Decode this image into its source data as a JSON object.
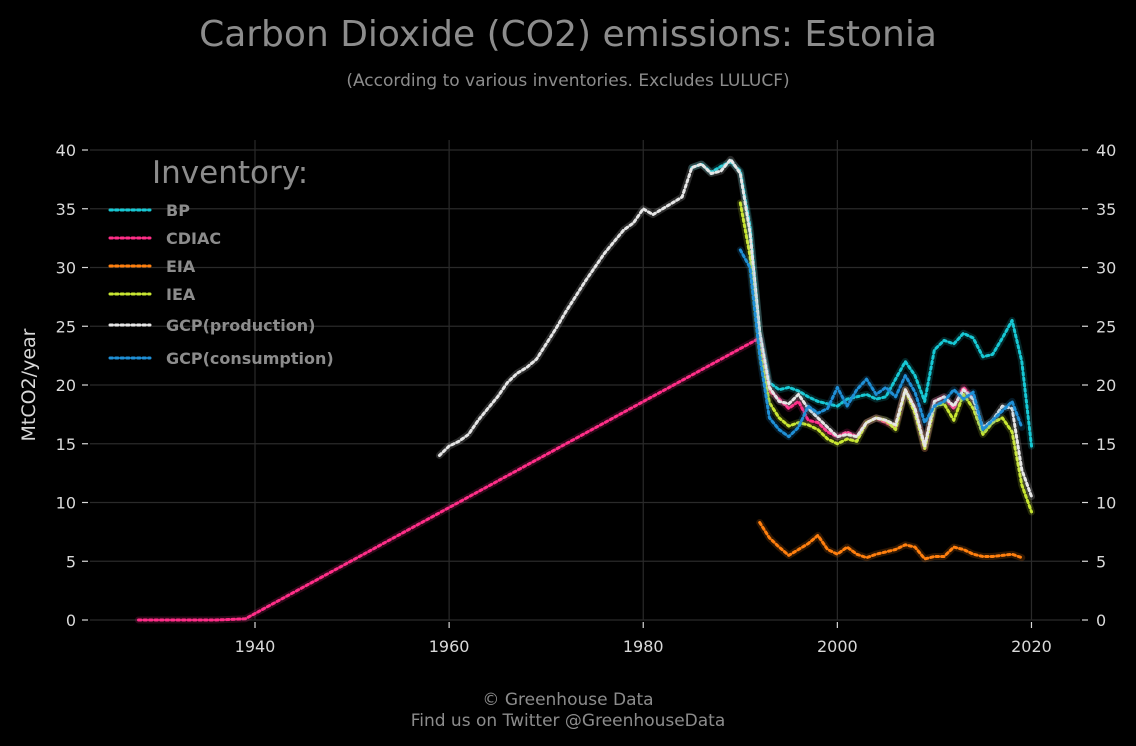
{
  "chart_data": {
    "type": "line",
    "title": "Carbon Dioxide (CO2) emissions: Estonia",
    "subtitle": "(According to various inventories. Excludes LULUCF)",
    "xlabel": "",
    "ylabel": "MtCO2/year",
    "xlim": [
      1923,
      2025
    ],
    "ylim": [
      0,
      40
    ],
    "xticks": [
      1940,
      1960,
      1980,
      2000,
      2020
    ],
    "yticks": [
      0,
      5,
      10,
      15,
      20,
      25,
      30,
      35,
      40
    ],
    "grid": true,
    "legend_title": "Inventory:",
    "legend_position": "top-left",
    "series": [
      {
        "name": "BP",
        "color": "#17c8d4",
        "x": [
          1985,
          1986,
          1987,
          1988,
          1989,
          1990,
          1991,
          1992,
          1993,
          1994,
          1995,
          1996,
          1997,
          1998,
          1999,
          2000,
          2001,
          2002,
          2003,
          2004,
          2005,
          2006,
          2007,
          2008,
          2009,
          2010,
          2011,
          2012,
          2013,
          2014,
          2015,
          2016,
          2017,
          2018,
          2019,
          2020
        ],
        "y": [
          38.5,
          38.8,
          38.1,
          38.6,
          39.0,
          38.2,
          33.5,
          24.5,
          20.2,
          19.6,
          19.8,
          19.5,
          19.0,
          18.6,
          18.4,
          18.2,
          18.8,
          19.0,
          19.2,
          18.8,
          19.0,
          20.5,
          22.0,
          20.8,
          18.6,
          23.0,
          23.8,
          23.5,
          24.4,
          24.0,
          22.4,
          22.6,
          24.0,
          25.5,
          22.0,
          14.8
        ]
      },
      {
        "name": "CDIAC",
        "color": "#ff2e88",
        "x": [
          1928,
          1932,
          1936,
          1939,
          1992,
          1993,
          1994,
          1995,
          1996,
          1997,
          1998,
          1999,
          2000,
          2001,
          2002,
          2003,
          2004,
          2005,
          2006,
          2007,
          2008,
          2009,
          2010,
          2011,
          2012,
          2013,
          2014
        ],
        "y": [
          0,
          0,
          0,
          0.1,
          24.0,
          19.5,
          18.8,
          18.0,
          18.6,
          17.0,
          16.8,
          16.0,
          15.6,
          16.0,
          15.6,
          16.8,
          17.2,
          16.8,
          16.4,
          19.6,
          18.0,
          14.6,
          18.6,
          19.0,
          18.0,
          19.8,
          18.8
        ]
      },
      {
        "name": "EIA",
        "color": "#ff7f0e",
        "x": [
          1992,
          1993,
          1994,
          1995,
          1996,
          1997,
          1998,
          1999,
          2000,
          2001,
          2002,
          2003,
          2004,
          2005,
          2006,
          2007,
          2008,
          2009,
          2010,
          2011,
          2012,
          2013,
          2014,
          2015,
          2016,
          2017,
          2018,
          2019
        ],
        "y": [
          8.3,
          7.0,
          6.2,
          5.5,
          6.0,
          6.5,
          7.2,
          6.0,
          5.6,
          6.2,
          5.6,
          5.3,
          5.6,
          5.8,
          6.0,
          6.4,
          6.2,
          5.2,
          5.4,
          5.4,
          6.2,
          6.0,
          5.6,
          5.4,
          5.4,
          5.5,
          5.6,
          5.3
        ]
      },
      {
        "name": "IEA",
        "color": "#c8e632",
        "x": [
          1990,
          1991,
          1992,
          1993,
          1994,
          1995,
          1996,
          1997,
          1998,
          1999,
          2000,
          2001,
          2002,
          2003,
          2004,
          2005,
          2006,
          2007,
          2008,
          2009,
          2010,
          2011,
          2012,
          2013,
          2014,
          2015,
          2016,
          2017,
          2018,
          2019,
          2020
        ],
        "y": [
          35.5,
          31.0,
          23.0,
          18.5,
          17.2,
          16.5,
          16.8,
          16.6,
          16.2,
          15.4,
          15.0,
          15.4,
          15.2,
          16.8,
          17.2,
          17.0,
          16.2,
          19.6,
          17.6,
          14.6,
          18.2,
          18.4,
          17.0,
          19.2,
          18.0,
          15.8,
          16.8,
          17.2,
          16.0,
          11.5,
          9.2
        ]
      },
      {
        "name": "GCP(production)",
        "color": "#e6e6e6",
        "x": [
          1959,
          1960,
          1961,
          1962,
          1963,
          1964,
          1965,
          1966,
          1967,
          1968,
          1969,
          1970,
          1971,
          1972,
          1973,
          1974,
          1975,
          1976,
          1977,
          1978,
          1979,
          1980,
          1981,
          1982,
          1983,
          1984,
          1985,
          1986,
          1987,
          1988,
          1989,
          1990,
          1991,
          1992,
          1993,
          1994,
          1995,
          1996,
          1997,
          1998,
          1999,
          2000,
          2001,
          2002,
          2003,
          2004,
          2005,
          2006,
          2007,
          2008,
          2009,
          2010,
          2011,
          2012,
          2013,
          2014,
          2015,
          2016,
          2017,
          2018,
          2019,
          2020
        ],
        "y": [
          14.0,
          14.8,
          15.2,
          15.8,
          17.0,
          18.0,
          19.0,
          20.2,
          21.0,
          21.5,
          22.2,
          23.5,
          24.8,
          26.2,
          27.5,
          28.8,
          30.0,
          31.2,
          32.2,
          33.2,
          33.8,
          35.0,
          34.5,
          35.0,
          35.5,
          36.0,
          38.5,
          38.8,
          38.0,
          38.2,
          39.2,
          38.0,
          33.0,
          24.5,
          19.8,
          18.6,
          18.4,
          19.2,
          18.0,
          17.2,
          16.4,
          15.6,
          15.8,
          15.6,
          16.8,
          17.2,
          17.0,
          16.6,
          19.6,
          18.0,
          14.8,
          18.6,
          19.0,
          18.2,
          19.6,
          18.8,
          16.4,
          17.0,
          18.2,
          18.0,
          12.8,
          10.5
        ]
      },
      {
        "name": "GCP(consumption)",
        "color": "#1f8fd6",
        "x": [
          1990,
          1991,
          1992,
          1993,
          1994,
          1995,
          1996,
          1997,
          1998,
          1999,
          2000,
          2001,
          2002,
          2003,
          2004,
          2005,
          2006,
          2007,
          2008,
          2009,
          2010,
          2011,
          2012,
          2013,
          2014,
          2015,
          2016,
          2017,
          2018,
          2019
        ],
        "y": [
          31.5,
          30.0,
          22.5,
          17.2,
          16.2,
          15.6,
          16.4,
          18.2,
          17.6,
          18.0,
          19.8,
          18.2,
          19.6,
          20.5,
          19.2,
          19.8,
          19.0,
          20.8,
          19.4,
          16.8,
          18.2,
          18.6,
          19.6,
          18.8,
          19.4,
          16.2,
          17.0,
          17.8,
          18.6,
          16.4
        ]
      }
    ]
  },
  "footer": {
    "line1": "© Greenhouse Data",
    "line2": "Find us on Twitter @GreenhouseData"
  }
}
